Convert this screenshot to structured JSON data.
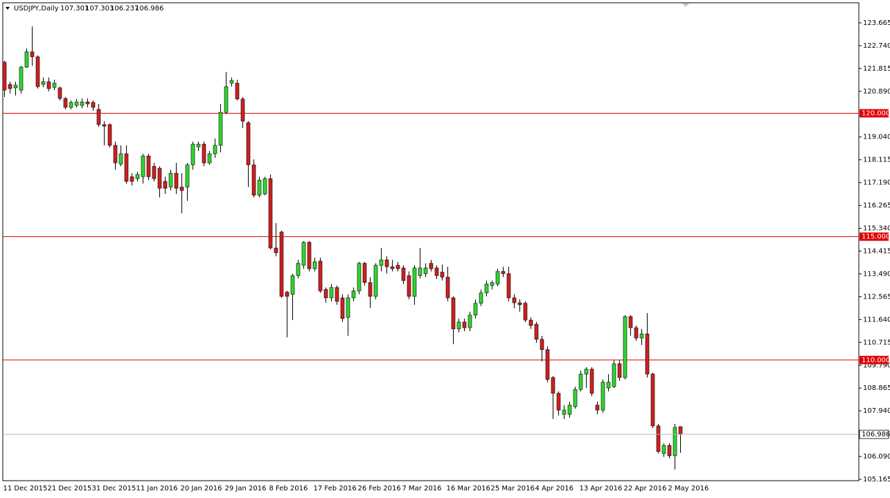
{
  "chart_data": {
    "type": "candlestick",
    "title": "USDJPY,Daily",
    "categories": [
      "11 Dec 2015",
      null,
      null,
      null,
      null,
      null,
      null,
      null,
      "21 Dec 2015",
      null,
      null,
      null,
      null,
      null,
      null,
      null,
      "31 Dec 2015",
      null,
      null,
      null,
      null,
      null,
      null,
      null,
      "11 Jan 2016",
      null,
      null,
      null,
      null,
      null,
      null,
      null,
      "20 Jan 2016",
      null,
      null,
      null,
      null,
      null,
      null,
      null,
      "29 Jan 2016",
      null,
      null,
      null,
      null,
      null,
      null,
      null,
      "8 Feb 2016",
      null,
      null,
      null,
      null,
      null,
      null,
      null,
      "17 Feb 2016",
      null,
      null,
      null,
      null,
      null,
      null,
      null,
      "26 Feb 2016",
      null,
      null,
      null,
      null,
      null,
      null,
      null,
      "7 Mar 2016",
      null,
      null,
      null,
      null,
      null,
      null,
      null,
      "16 Mar 2016",
      null,
      null,
      null,
      null,
      null,
      null,
      null,
      "25 Mar 2016",
      null,
      null,
      null,
      null,
      null,
      null,
      null,
      "4 Apr 2016",
      null,
      null,
      null,
      null,
      null,
      null,
      null,
      "13 Apr 2016",
      null,
      null,
      null,
      null,
      null,
      null,
      null,
      "22 Apr 2016",
      null,
      null,
      null,
      null,
      null,
      null,
      null,
      "2 May 2016",
      null,
      null
    ],
    "open": [
      122.07,
      121.17,
      121.03,
      120.94,
      121.87,
      122.49,
      122.29,
      121.17,
      121.28,
      121.05,
      121.03,
      120.6,
      120.24,
      120.32,
      120.32,
      120.46,
      120.44,
      120.16,
      119.54,
      119.54,
      118.7,
      117.94,
      118.36,
      117.43,
      117.35,
      117.43,
      118.27,
      117.85,
      117.77,
      117.24,
      117.01,
      117.57,
      117.01,
      117.01,
      117.91,
      118.64,
      118.75,
      117.99,
      118.36,
      118.7,
      120.04,
      121.22,
      121.22,
      120.58,
      119.62,
      117.91,
      116.68,
      116.73,
      117.35,
      114.54,
      115.19,
      112.75,
      112.66,
      113.42,
      113.84,
      114.77,
      113.7,
      114.01,
      112.86,
      112.52,
      112.94,
      112.52,
      111.73,
      112.52,
      112.8,
      113.92,
      113.14,
      112.58,
      113.84,
      114.06,
      113.78,
      113.84,
      113.73,
      113.42,
      112.58,
      113.42,
      113.5,
      113.92,
      113.73,
      113.56,
      113.36,
      112.52,
      111.26,
      111.54,
      111.31,
      111.82,
      112.3,
      112.72,
      113.02,
      113.08,
      113.59,
      113.5,
      112.52,
      112.32,
      112.3,
      111.62,
      111.45,
      110.84,
      110.42,
      109.29,
      108.65,
      107.8,
      107.8,
      108.11,
      108.81,
      109.43,
      109.63,
      108.17,
      107.97,
      108.87,
      108.92,
      109.85,
      109.29,
      111.76,
      111.31,
      110.89,
      111.06,
      109.43,
      107.33,
      106.21,
      106.54,
      106.12,
      107.301
    ],
    "high": [
      122.12,
      121.28,
      121.28,
      121.92,
      122.63,
      123.52,
      122.35,
      121.45,
      121.45,
      121.36,
      121.08,
      120.66,
      120.52,
      120.58,
      120.6,
      120.6,
      120.52,
      120.38,
      119.68,
      119.59,
      118.85,
      118.7,
      118.7,
      117.57,
      117.63,
      118.36,
      118.36,
      117.99,
      117.85,
      117.43,
      117.71,
      117.99,
      117.57,
      117.99,
      118.85,
      118.85,
      118.85,
      118.47,
      118.98,
      120.38,
      121.67,
      121.45,
      121.36,
      120.66,
      119.68,
      118.13,
      117.43,
      117.43,
      117.52,
      115.55,
      115.24,
      112.8,
      113.5,
      114.06,
      114.82,
      114.82,
      114.15,
      114.15,
      112.94,
      113.08,
      113.02,
      112.66,
      112.66,
      112.94,
      113.98,
      113.98,
      113.36,
      113.92,
      114.54,
      114.2,
      114.06,
      113.98,
      113.84,
      113.59,
      113.84,
      114.54,
      113.92,
      114.06,
      113.84,
      113.87,
      113.78,
      112.58,
      111.68,
      111.68,
      111.96,
      112.46,
      112.86,
      113.22,
      113.22,
      113.7,
      113.78,
      113.78,
      112.66,
      112.46,
      112.38,
      111.73,
      111.54,
      110.98,
      110.56,
      109.35,
      108.73,
      108.17,
      108.31,
      108.92,
      109.57,
      109.71,
      109.71,
      108.31,
      109.21,
      109.43,
      109.99,
      109.99,
      111.82,
      111.82,
      111.4,
      111.26,
      111.9,
      109.49,
      107.41,
      106.62,
      106.62,
      107.41,
      107.303
    ],
    "low": [
      120.66,
      120.8,
      120.72,
      120.8,
      121.84,
      121.92,
      121.0,
      121.05,
      120.89,
      120.94,
      120.52,
      120.16,
      120.16,
      120.24,
      120.21,
      120.24,
      120.1,
      119.45,
      118.7,
      118.61,
      117.71,
      117.85,
      117.15,
      117.07,
      117.24,
      117.15,
      117.29,
      117.24,
      116.59,
      116.73,
      116.87,
      116.73,
      115.95,
      116.45,
      117.71,
      118.47,
      117.85,
      117.91,
      118.19,
      118.42,
      119.96,
      121.08,
      120.52,
      119.4,
      117.01,
      116.59,
      116.59,
      116.68,
      114.49,
      114.2,
      112.52,
      110.92,
      111.62,
      113.31,
      113.7,
      113.59,
      113.59,
      112.72,
      112.32,
      112.38,
      112.24,
      111.54,
      110.98,
      112.38,
      112.66,
      113.02,
      112.1,
      112.46,
      113.59,
      113.5,
      113.59,
      113.59,
      113.08,
      112.46,
      112.24,
      113.31,
      113.36,
      113.59,
      113.28,
      113.22,
      112.38,
      110.64,
      111.12,
      111.17,
      111.17,
      111.68,
      112.18,
      112.58,
      112.86,
      112.99,
      113.36,
      112.38,
      112.1,
      111.96,
      111.54,
      111.26,
      110.7,
      109.94,
      109.1,
      107.61,
      107.75,
      107.61,
      107.66,
      108.03,
      108.73,
      108.87,
      108.53,
      107.8,
      107.86,
      108.73,
      108.87,
      109.15,
      109.21,
      110.98,
      110.78,
      110.61,
      109.29,
      107.24,
      106.21,
      106.07,
      106.01,
      105.56,
      106.237
    ],
    "close": [
      120.94,
      121.0,
      121.14,
      121.87,
      122.49,
      122.29,
      121.08,
      121.28,
      121.0,
      121.22,
      120.6,
      120.24,
      120.44,
      120.46,
      120.46,
      120.38,
      120.24,
      119.54,
      119.48,
      118.7,
      117.99,
      118.36,
      117.24,
      117.24,
      117.52,
      118.27,
      117.43,
      117.35,
      116.96,
      116.96,
      117.57,
      116.96,
      116.87,
      117.91,
      118.75,
      118.75,
      117.99,
      118.36,
      118.7,
      120.04,
      121.08,
      121.33,
      120.58,
      119.68,
      117.91,
      116.68,
      117.29,
      117.35,
      114.54,
      114.35,
      112.58,
      112.58,
      113.42,
      113.92,
      114.77,
      113.7,
      113.98,
      112.8,
      112.52,
      112.94,
      112.38,
      111.68,
      112.52,
      112.8,
      113.92,
      113.14,
      112.58,
      113.84,
      114.06,
      113.78,
      113.7,
      113.7,
      113.22,
      112.58,
      113.73,
      113.73,
      113.73,
      113.7,
      113.42,
      113.36,
      112.52,
      111.26,
      111.54,
      111.31,
      111.82,
      112.3,
      112.72,
      113.08,
      113.14,
      113.59,
      113.5,
      112.52,
      112.32,
      112.24,
      111.62,
      111.4,
      110.84,
      110.42,
      109.21,
      108.65,
      107.97,
      107.97,
      108.17,
      108.81,
      109.43,
      109.63,
      108.65,
      107.97,
      109.1,
      109.1,
      109.85,
      109.29,
      111.76,
      111.31,
      110.89,
      111.06,
      109.43,
      107.33,
      106.29,
      106.54,
      106.12,
      107.27,
      106.986
    ],
    "up_color": "#2fd62f",
    "down_color": "#cf2020",
    "ylim": [
      105.109,
      124.479
    ],
    "yticks": [
      123.665,
      {
        "value": 122.74,
        "label": "122.740"
      },
      121.815,
      {
        "value": 120.89,
        "label": "120.890"
      },
      {
        "value": 119.04,
        "label": "119.040"
      },
      118.115,
      {
        "value": 117.19,
        "label": "117.190"
      },
      116.265,
      {
        "value": 115.34,
        "label": "115.340"
      },
      114.415,
      {
        "value": 113.49,
        "label": "113.490"
      },
      112.565,
      {
        "value": 111.64,
        "label": "111.640"
      },
      110.715,
      {
        "value": 109.79,
        "label": "109.790"
      },
      108.865,
      {
        "value": 107.94,
        "label": "107.940"
      },
      {
        "value": 106.09,
        "label": "106.090"
      },
      105.165
    ],
    "levels": [
      {
        "value": 120,
        "label": "120.000"
      },
      {
        "value": 115,
        "label": "115.000"
      },
      {
        "value": 110,
        "label": "110.000"
      }
    ],
    "level_color": "#e00000",
    "price_line_color": "#b8b8b8"
  }
}
